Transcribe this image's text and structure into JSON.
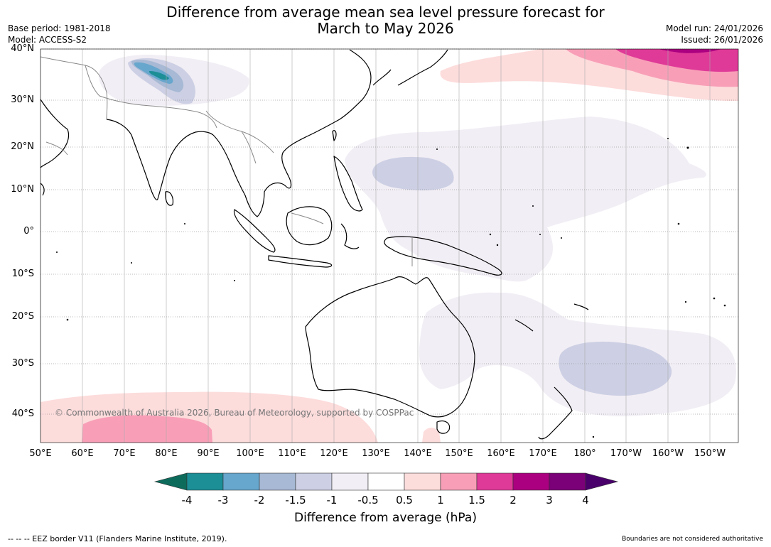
{
  "title_line1": "Difference from average mean sea level pressure forecast for",
  "title_line2": "March to May 2026",
  "meta_left": {
    "base_period": "Base period: 1981-2018",
    "model": "Model: ACCESS-S2"
  },
  "meta_right": {
    "model_run": "Model run: 24/01/2026",
    "issued": "Issued: 26/01/2026"
  },
  "lat_labels": [
    "40°N",
    "30°N",
    "20°N",
    "10°N",
    "0°",
    "10°S",
    "20°S",
    "30°S",
    "40°S"
  ],
  "lon_labels": [
    "50°E",
    "60°E",
    "70°E",
    "80°E",
    "90°E",
    "100°E",
    "110°E",
    "120°E",
    "130°E",
    "140°E",
    "150°E",
    "160°E",
    "170°E",
    "180°",
    "170°W",
    "160°W",
    "150°W"
  ],
  "colorbar": {
    "title": "Difference from average (hPa)",
    "ticks": [
      "-4",
      "-3",
      "-2",
      "-1.5",
      "-1",
      "-0.5",
      "0.5",
      "1",
      "1.5",
      "2",
      "3",
      "4"
    ],
    "colors": {
      "below_-4": "#0d6b5c",
      "-4_-3": "#1b8e96",
      "-3_-2": "#67a6cd",
      "-2_-1.5": "#a7b9d4",
      "-1.5_-1": "#cdd0e4",
      "-1_-0.5": "#f2eef5",
      "-0.5_0.5": "#ffffff",
      "0.5_1": "#fddcdc",
      "1_1.5": "#f89fb7",
      "1.5_2": "#df3a98",
      "2_3": "#ab0080",
      "3_4": "#7a0177",
      "above_4": "#49006a"
    }
  },
  "copyright": "© Commonwealth of Australia 2026, Bureau of Meteorology, supported by COSPPac",
  "footer_left": "--  --  -- EEZ border V11 (Flanders Marine Institute, 2019).",
  "footer_right": "Boundaries are not considered authoritative"
}
